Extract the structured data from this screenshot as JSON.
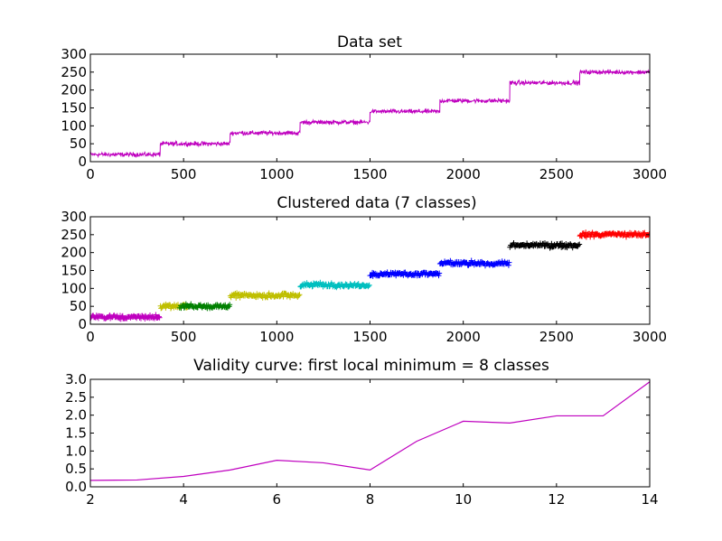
{
  "figure": {
    "background": "#ffffff"
  },
  "chart_data": [
    {
      "type": "line",
      "title": "Data set",
      "xlabel": "",
      "ylabel": "",
      "xlim": [
        0,
        3000
      ],
      "ylim": [
        0,
        300
      ],
      "xticks": [
        0,
        500,
        1000,
        1500,
        2000,
        2500,
        3000
      ],
      "yticks": [
        0,
        50,
        100,
        150,
        200,
        250,
        300
      ],
      "grid": false,
      "series": [
        {
          "color": "#bf00bf",
          "noise_amplitude": 9,
          "segments": [
            {
              "x_start": 0,
              "x_end": 375,
              "level": 20
            },
            {
              "x_start": 375,
              "x_end": 750,
              "level": 50
            },
            {
              "x_start": 750,
              "x_end": 1125,
              "level": 80
            },
            {
              "x_start": 1125,
              "x_end": 1500,
              "level": 110
            },
            {
              "x_start": 1500,
              "x_end": 1875,
              "level": 140
            },
            {
              "x_start": 1875,
              "x_end": 2250,
              "level": 170
            },
            {
              "x_start": 2250,
              "x_end": 2625,
              "level": 220
            },
            {
              "x_start": 2625,
              "x_end": 3000,
              "level": 250
            }
          ]
        }
      ]
    },
    {
      "type": "scatter",
      "title": "Clustered data (7 classes)",
      "xlabel": "",
      "ylabel": "",
      "xlim": [
        0,
        3000
      ],
      "ylim": [
        0,
        300
      ],
      "xticks": [
        0,
        500,
        1000,
        1500,
        2000,
        2500,
        3000
      ],
      "yticks": [
        0,
        50,
        100,
        150,
        200,
        250,
        300
      ],
      "grid": false,
      "marker": "+",
      "noise_amplitude": 9,
      "clusters": [
        {
          "color": "#bf00bf",
          "x_start": 0,
          "x_end": 375,
          "level": 20
        },
        {
          "color": "#bfbf00",
          "x_start": 375,
          "x_end": 520,
          "level": 50
        },
        {
          "color": "#008000",
          "x_start": 480,
          "x_end": 750,
          "level": 50
        },
        {
          "color": "#bfbf00",
          "x_start": 750,
          "x_end": 1125,
          "level": 80
        },
        {
          "color": "#00bfbf",
          "x_start": 1125,
          "x_end": 1500,
          "level": 110
        },
        {
          "color": "#0000ff",
          "x_start": 1500,
          "x_end": 1875,
          "level": 140
        },
        {
          "color": "#0000ff",
          "x_start": 1875,
          "x_end": 2250,
          "level": 170
        },
        {
          "color": "#000000",
          "x_start": 2250,
          "x_end": 2625,
          "level": 220
        },
        {
          "color": "#ff0000",
          "x_start": 2625,
          "x_end": 3000,
          "level": 250
        }
      ]
    },
    {
      "type": "line",
      "title": "Validity curve: first local minimum = 8 classes",
      "xlabel": "",
      "ylabel": "",
      "xlim": [
        2,
        14
      ],
      "ylim": [
        0,
        3
      ],
      "xticks": [
        2,
        4,
        6,
        8,
        10,
        12,
        14
      ],
      "yticks": [
        0.0,
        0.5,
        1.0,
        1.5,
        2.0,
        2.5,
        3.0
      ],
      "grid": false,
      "series": [
        {
          "color": "#bf00bf",
          "x": [
            2,
            3,
            4,
            5,
            6,
            7,
            8,
            9,
            10,
            11,
            12,
            13,
            14
          ],
          "values": [
            0.18,
            0.19,
            0.29,
            0.47,
            0.74,
            0.67,
            0.47,
            1.27,
            1.83,
            1.78,
            1.98,
            1.98,
            2.93
          ]
        }
      ]
    }
  ]
}
